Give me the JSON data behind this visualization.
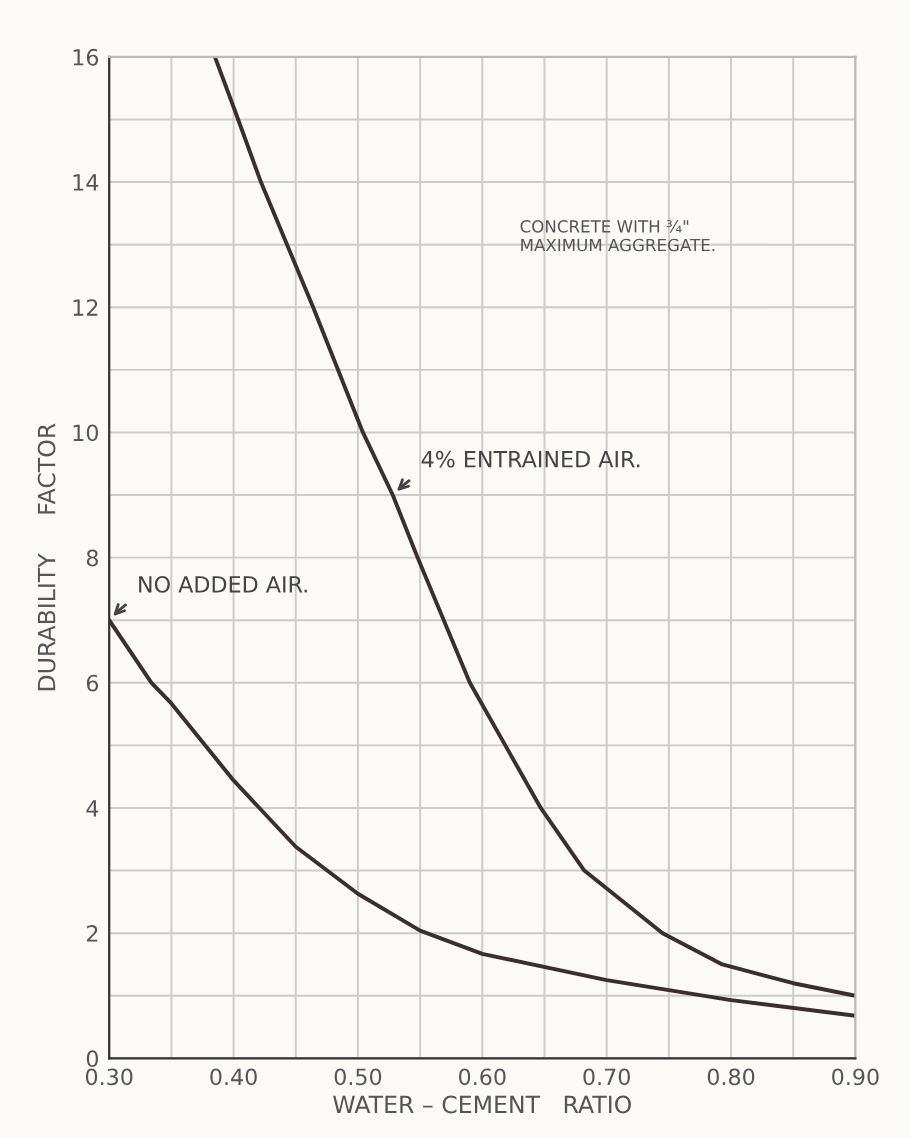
{
  "chart_data": {
    "type": "line",
    "xlabel": "WATER – CEMENT   RATIO",
    "ylabel": "DURABILITY     FACTOR",
    "series": [
      {
        "color": "#3a2e2e",
        "x": [
          0.385,
          0.4,
          0.422,
          0.464,
          0.504,
          0.528,
          0.548,
          0.59,
          0.647,
          0.682,
          0.745,
          0.793,
          0.85,
          0.9
        ],
        "values": [
          16,
          15.2,
          14,
          12,
          10,
          9,
          8,
          6,
          4,
          3,
          2,
          1.5,
          1.2,
          1.0
        ]
      },
      {
        "color": "#3a2e2e",
        "x": [
          0.3,
          0.334,
          0.35,
          0.4,
          0.45,
          0.5,
          0.55,
          0.6,
          0.7,
          0.8,
          0.9
        ],
        "values": [
          7.0,
          6,
          5.67,
          4.44,
          3.38,
          2.63,
          2.04,
          1.67,
          1.25,
          0.93,
          0.68
        ]
      }
    ],
    "xlim": [
      0.3,
      0.9
    ],
    "ylim": [
      0,
      16
    ],
    "xticks": [
      {
        "value": 0.3,
        "label": "0.30"
      },
      {
        "value": 0.35,
        "label": null
      },
      {
        "value": 0.4,
        "label": "0.40"
      },
      {
        "value": 0.45,
        "label": null
      },
      {
        "value": 0.5,
        "label": "0.50"
      },
      {
        "value": 0.55,
        "label": null
      },
      {
        "value": 0.6,
        "label": "0.60"
      },
      {
        "value": 0.65,
        "label": null
      },
      {
        "value": 0.7,
        "label": "0.70"
      },
      {
        "value": 0.75,
        "label": null
      },
      {
        "value": 0.8,
        "label": "0.80"
      },
      {
        "value": 0.85,
        "label": null
      },
      {
        "value": 0.9,
        "label": "0.90"
      }
    ],
    "yticks": [
      0,
      {
        "value": 1,
        "label": null
      },
      2,
      {
        "value": 3,
        "label": null
      },
      4,
      {
        "value": 5,
        "label": null
      },
      6,
      {
        "value": 7,
        "label": null
      },
      8,
      {
        "value": 9,
        "label": null
      },
      10,
      {
        "value": 11,
        "label": null
      },
      12,
      {
        "value": 13,
        "label": null
      },
      14,
      {
        "value": 15,
        "label": null
      },
      16
    ],
    "grid": true,
    "marker": "none",
    "line_style": "solid",
    "annotations": [
      {
        "text": "4% ENTRAINED AIR.",
        "x": 0.528,
        "y": 9
      },
      {
        "text": "NO ADDED AIR.",
        "x": 0.3,
        "y": 7
      },
      "CONCRETE WITH ¾\"\nMAXIMUM AGGREGATE."
    ]
  }
}
